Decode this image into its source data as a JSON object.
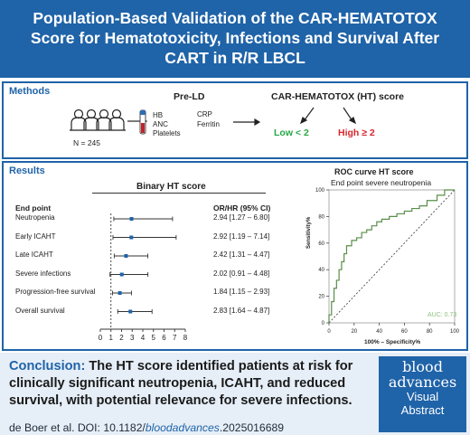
{
  "header": {
    "title_line1": "Population-Based Validation of the CAR-HEMATOTOX",
    "title_line2": "Score for Hematotoxicity, Infections and Survival After",
    "title_line3": "CART in R/R LBCL"
  },
  "methods": {
    "label": "Methods",
    "cohort": "N = 245",
    "pre_ld_title": "Pre-LD",
    "pre_ld_labs": [
      "HB",
      "ANC",
      "Platelets"
    ],
    "pre_ld_markers": [
      "CRP",
      "Ferritin"
    ],
    "score_title": "CAR-HEMATOTOX (HT) score",
    "low_label": "Low < 2",
    "high_label": "High ≥ 2",
    "colors": {
      "low": "#27a844",
      "high": "#d6252c"
    }
  },
  "results": {
    "label": "Results",
    "forest": {
      "title": "Binary HT score",
      "endpoint_header": "End point",
      "stat_header": "OR/HR (95% CI)",
      "rows": [
        {
          "endpoint": "Neutropenia",
          "estimate": 2.94,
          "lower": 1.27,
          "upper": 6.8,
          "text": "2.94 [1.27 – 6.80]"
        },
        {
          "endpoint": "Early ICAHT",
          "estimate": 2.92,
          "lower": 1.19,
          "upper": 7.14,
          "text": "2.92 [1.19 – 7.14]"
        },
        {
          "endpoint": "Late ICAHT",
          "estimate": 2.42,
          "lower": 1.31,
          "upper": 4.47,
          "text": "2.42 [1.31 – 4.47]"
        },
        {
          "endpoint": "Severe infections",
          "estimate": 2.02,
          "lower": 0.91,
          "upper": 4.48,
          "text": "2.02 [0.91 – 4.48]"
        },
        {
          "endpoint": "Progression-free survival",
          "estimate": 1.84,
          "lower": 1.15,
          "upper": 2.93,
          "text": "1.84 [1.15 – 2.93]"
        },
        {
          "endpoint": "Overall survival",
          "estimate": 2.83,
          "lower": 1.64,
          "upper": 4.87,
          "text": "2.83 [1.64 – 4.87]"
        }
      ],
      "xticks": [
        0,
        1,
        2,
        3,
        4,
        5,
        6,
        7,
        8
      ],
      "reference": 1
    },
    "roc": {
      "title": "ROC curve HT score",
      "subtitle": "End point severe neutropenia",
      "xlabel": "100% – Specificity%",
      "ylabel": "Sensitivity%",
      "xticks": [
        0,
        20,
        40,
        60,
        80,
        100
      ],
      "yticks": [
        0,
        20,
        40,
        60,
        80,
        100
      ],
      "auc_text": "AUC: 0.73",
      "auc_color": "#8fbf7f",
      "curve_color": "#5a8e4a",
      "curve": [
        [
          0,
          0
        ],
        [
          0,
          6
        ],
        [
          2,
          6
        ],
        [
          2,
          16
        ],
        [
          4,
          16
        ],
        [
          4,
          26
        ],
        [
          6,
          26
        ],
        [
          6,
          32
        ],
        [
          8,
          32
        ],
        [
          8,
          40
        ],
        [
          10,
          40
        ],
        [
          10,
          46
        ],
        [
          12,
          46
        ],
        [
          12,
          52
        ],
        [
          14,
          52
        ],
        [
          14,
          58
        ],
        [
          18,
          58
        ],
        [
          18,
          62
        ],
        [
          22,
          62
        ],
        [
          22,
          64
        ],
        [
          26,
          64
        ],
        [
          26,
          68
        ],
        [
          30,
          68
        ],
        [
          30,
          70
        ],
        [
          34,
          70
        ],
        [
          34,
          73
        ],
        [
          38,
          73
        ],
        [
          38,
          76
        ],
        [
          42,
          76
        ],
        [
          42,
          78
        ],
        [
          48,
          78
        ],
        [
          48,
          80
        ],
        [
          54,
          80
        ],
        [
          54,
          82
        ],
        [
          60,
          82
        ],
        [
          60,
          84
        ],
        [
          66,
          84
        ],
        [
          66,
          86
        ],
        [
          72,
          86
        ],
        [
          72,
          88
        ],
        [
          78,
          88
        ],
        [
          78,
          92
        ],
        [
          86,
          92
        ],
        [
          86,
          96
        ],
        [
          92,
          96
        ],
        [
          92,
          100
        ],
        [
          100,
          100
        ]
      ]
    }
  },
  "chart_data": [
    {
      "type": "scatter",
      "title": "Binary HT score",
      "xlabel": "",
      "ylabel": "End point",
      "categories": [
        "Neutropenia",
        "Early ICAHT",
        "Late ICAHT",
        "Severe infections",
        "Progression-free survival",
        "Overall survival"
      ],
      "values": [
        2.94,
        2.92,
        2.42,
        2.02,
        1.84,
        2.83
      ],
      "lower": [
        1.27,
        1.19,
        1.31,
        0.91,
        1.15,
        1.64
      ],
      "upper": [
        6.8,
        7.14,
        4.47,
        4.48,
        2.93,
        4.87
      ],
      "xlim": [
        0,
        8
      ]
    },
    {
      "type": "line",
      "title": "ROC curve HT score",
      "subtitle": "End point severe neutropenia",
      "xlabel": "100% – Specificity%",
      "ylabel": "Sensitivity%",
      "xlim": [
        0,
        100
      ],
      "ylim": [
        0,
        100
      ],
      "annotation": "AUC: 0.73"
    }
  ],
  "conclusion": {
    "lead": "Conclusion:",
    "body": " The HT score identified patients at risk for clinically significant neutropenia, ICAHT, and reduced survival, with potential relevance for severe infections."
  },
  "citation": {
    "prefix": "de Boer et al. DOI: 10.1182/",
    "journal": "bloodadvances",
    "suffix": ".2025016689"
  },
  "logo": {
    "line1": "blood",
    "line2": "advances",
    "line3": "Visual",
    "line4": "Abstract"
  }
}
